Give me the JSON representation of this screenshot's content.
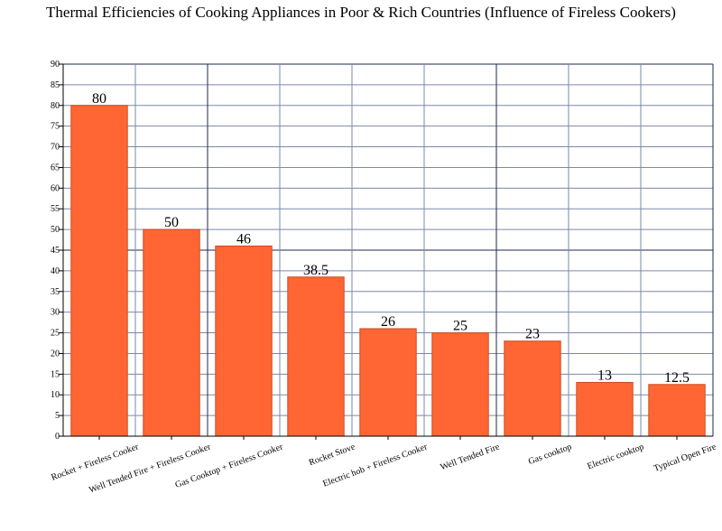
{
  "chart_data": {
    "type": "bar",
    "title": "Thermal Efficiencies of Cooking Appliances in Poor & Rich Countries (Influence of Fireless Cookers)",
    "xlabel": "",
    "ylabel": "",
    "categories": [
      "Rocket + Fireless Cooker",
      "Well Tended Fire + Fireless Cooker",
      "Gas Cooktop + Fireless Cooker",
      "Rocket Stove",
      "Electric hob + Fireless Cooker",
      "Well Tended Fire",
      "Gas cooktop",
      "Electric cooktop",
      "Typical Open Fire"
    ],
    "values": [
      80,
      50,
      46,
      38.5,
      26,
      25,
      23,
      13,
      12.5
    ],
    "value_labels": [
      "80",
      "50",
      "46",
      "38.5",
      "26",
      "25",
      "23",
      "13",
      "12.5"
    ],
    "ylim": [
      0,
      90
    ],
    "yticks": [
      0,
      5,
      10,
      15,
      20,
      25,
      30,
      35,
      40,
      45,
      50,
      55,
      60,
      65,
      70,
      75,
      80,
      85,
      90
    ],
    "grid": true,
    "bar_color": "#FF6633",
    "bar_edge_color": "#CC4A1F",
    "grid_color": "#7A8AA8",
    "major_grid_color": "#1C2A4A"
  }
}
